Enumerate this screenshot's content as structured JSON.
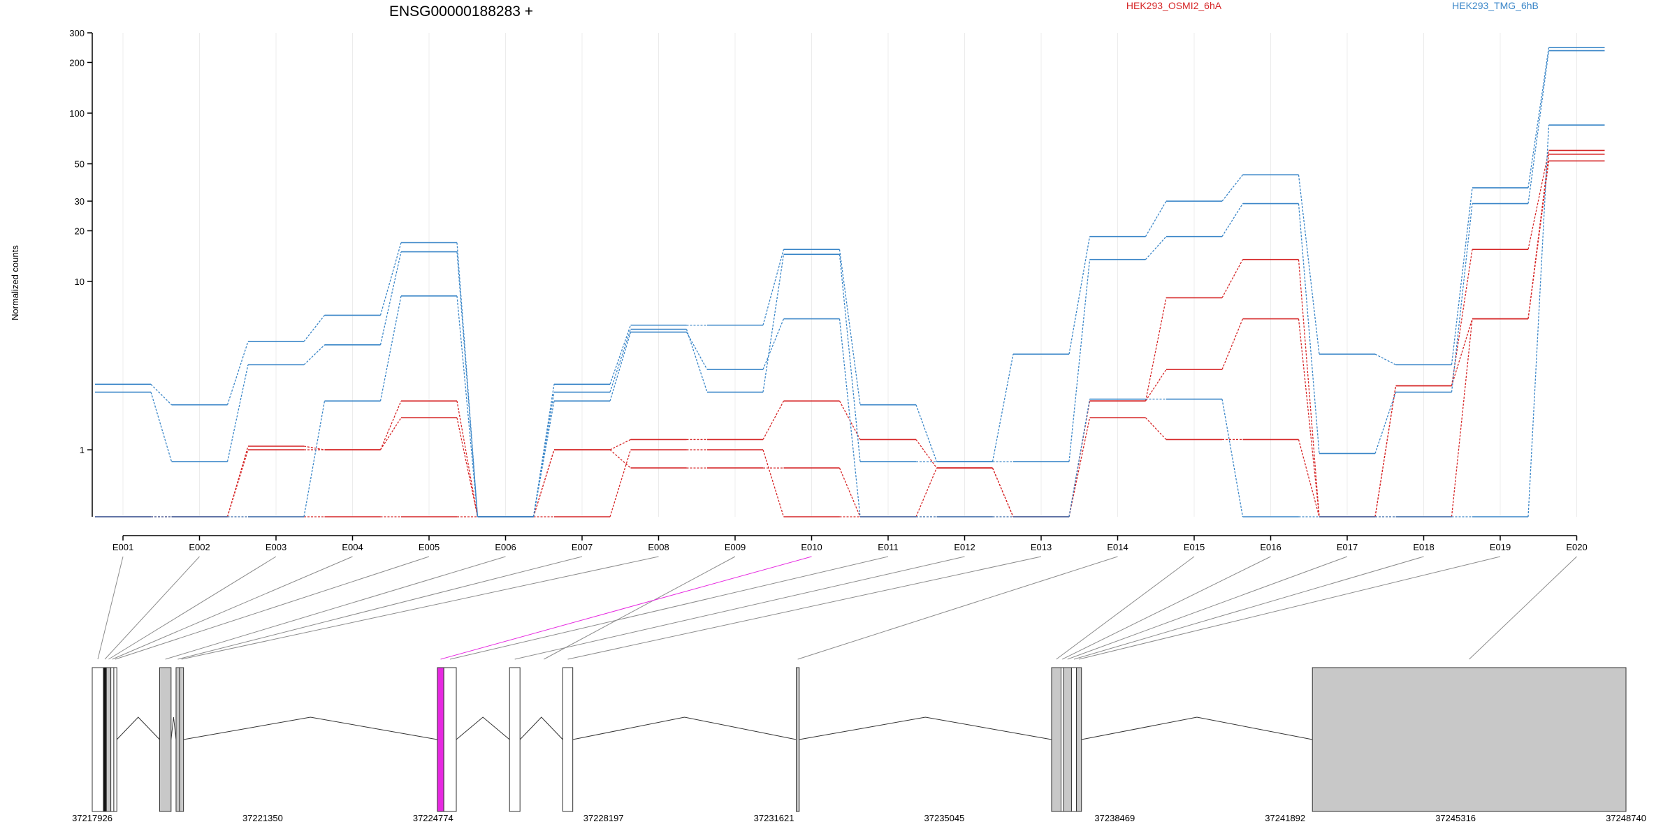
{
  "chart_data": {
    "type": "line",
    "title": "ENSG00000188283 +",
    "ylabel": "Normalized counts",
    "yscale": "log",
    "yticks": [
      1,
      10,
      20,
      30,
      50,
      100,
      200,
      300
    ],
    "ylim": [
      0.4,
      300
    ],
    "categories": [
      "E001",
      "E002",
      "E003",
      "E004",
      "E005",
      "E006",
      "E007",
      "E008",
      "E009",
      "E010",
      "E011",
      "E012",
      "E013",
      "E014",
      "E015",
      "E016",
      "E017",
      "E018",
      "E019",
      "E020"
    ],
    "legend": [
      {
        "name": "HEK293_OSMI2_6hA",
        "color": "#d62728"
      },
      {
        "name": "HEK293_TMG_6hB",
        "color": "#3a86c8"
      }
    ],
    "series": [
      {
        "group": "HEK293_OSMI2_6hA",
        "color": "#d62728",
        "values": [
          0.4,
          0.4,
          1.05,
          1.0,
          1.95,
          0.4,
          1.0,
          1.15,
          1.15,
          1.95,
          1.15,
          0.78,
          0.4,
          1.95,
          8.0,
          13.5,
          0.4,
          2.4,
          15.5,
          60
        ]
      },
      {
        "group": "HEK293_OSMI2_6hA",
        "color": "#d62728",
        "values": [
          0.4,
          0.4,
          1.0,
          1.0,
          1.55,
          0.4,
          1.0,
          0.78,
          0.78,
          0.78,
          0.4,
          0.78,
          0.4,
          1.55,
          1.15,
          1.15,
          0.4,
          2.4,
          6.0,
          57
        ]
      },
      {
        "group": "HEK293_OSMI2_6hA",
        "color": "#d62728",
        "values": [
          0.4,
          0.4,
          0.4,
          0.4,
          0.4,
          0.4,
          0.4,
          1.0,
          1.0,
          0.4,
          0.4,
          0.4,
          0.4,
          1.95,
          3.0,
          6.0,
          0.4,
          0.4,
          6.0,
          52
        ]
      },
      {
        "group": "HEK293_TMG_6hB",
        "color": "#3a86c8",
        "values": [
          2.45,
          1.85,
          4.4,
          6.3,
          17.0,
          0.4,
          2.45,
          5.5,
          5.5,
          15.5,
          1.85,
          0.85,
          3.7,
          18.5,
          30,
          43,
          3.7,
          3.2,
          36,
          245
        ]
      },
      {
        "group": "HEK293_TMG_6hB",
        "color": "#3a86c8",
        "values": [
          2.2,
          0.85,
          3.2,
          4.2,
          15.0,
          0.4,
          2.2,
          5.2,
          2.2,
          14.5,
          0.85,
          0.85,
          0.85,
          13.5,
          18.5,
          29,
          0.95,
          2.2,
          29,
          235
        ]
      },
      {
        "group": "HEK293_TMG_6hB",
        "color": "#3a86c8",
        "values": [
          0.4,
          0.4,
          0.4,
          1.95,
          8.2,
          0.4,
          1.95,
          5.0,
          3.0,
          6.0,
          0.4,
          0.4,
          0.4,
          2.0,
          2.0,
          0.4,
          0.4,
          0.4,
          0.4,
          85
        ]
      }
    ],
    "gene_model": {
      "coordinates": [
        "37217926",
        "37221350",
        "37224774",
        "37228197",
        "37231621",
        "37235045",
        "37238469",
        "37241892",
        "37245316",
        "37248740"
      ],
      "coord_range": [
        37217926,
        37248740
      ],
      "highlight_exon": "E010",
      "highlight_color": "#e629e0",
      "exons": [
        {
          "id": "E001",
          "start": 37217926,
          "end": 37218150,
          "fill": "white"
        },
        {
          "id": "E002",
          "start": 37218150,
          "end": 37218210,
          "fill": "black"
        },
        {
          "id": "E003",
          "start": 37218210,
          "end": 37218300,
          "fill": "gray"
        },
        {
          "id": "E004",
          "start": 37218300,
          "end": 37218360,
          "fill": "white"
        },
        {
          "id": "E005",
          "start": 37218360,
          "end": 37218420,
          "fill": "white"
        },
        {
          "id": "E006",
          "start": 37219280,
          "end": 37219510,
          "fill": "gray"
        },
        {
          "id": "E007",
          "start": 37219610,
          "end": 37219680,
          "fill": "gray"
        },
        {
          "id": "E008",
          "start": 37219680,
          "end": 37219760,
          "fill": "gray"
        },
        {
          "id": "E010",
          "start": 37224860,
          "end": 37224990,
          "fill": "magenta"
        },
        {
          "id": "E011",
          "start": 37224990,
          "end": 37225240,
          "fill": "white"
        },
        {
          "id": "E012",
          "start": 37226310,
          "end": 37226520,
          "fill": "white"
        },
        {
          "id": "E013",
          "start": 37227380,
          "end": 37227580,
          "fill": "white"
        },
        {
          "id": "E014",
          "start": 37232070,
          "end": 37232130,
          "fill": "gray"
        },
        {
          "id": "E015",
          "start": 37237200,
          "end": 37237390,
          "fill": "gray"
        },
        {
          "id": "E016",
          "start": 37237390,
          "end": 37237440,
          "fill": "white"
        },
        {
          "id": "E017",
          "start": 37237440,
          "end": 37237600,
          "fill": "gray"
        },
        {
          "id": "E018",
          "start": 37237600,
          "end": 37237700,
          "fill": "white"
        },
        {
          "id": "E019",
          "start": 37237700,
          "end": 37237800,
          "fill": "gray"
        },
        {
          "id": "E020",
          "start": 37242440,
          "end": 37248740,
          "fill": "gray"
        }
      ]
    }
  }
}
